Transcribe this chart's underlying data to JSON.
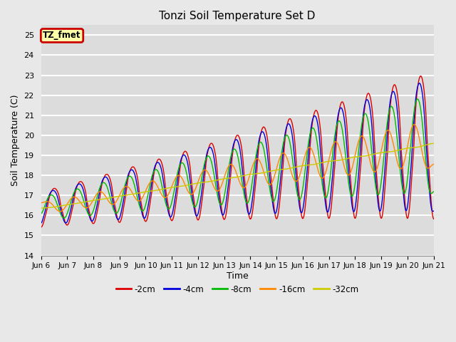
{
  "title": "Tonzi Soil Temperature Set D",
  "xlabel": "Time",
  "ylabel": "Soil Temperature (C)",
  "ylim": [
    14.0,
    25.5
  ],
  "yticks": [
    14.0,
    15.0,
    16.0,
    17.0,
    18.0,
    19.0,
    20.0,
    21.0,
    22.0,
    23.0,
    24.0,
    25.0
  ],
  "fig_bg_color": "#e8e8e8",
  "plot_bg_color": "#dcdcdc",
  "label_box_text": "TZ_fmet",
  "label_box_bg": "#ffffaa",
  "label_box_edge": "#cc0000",
  "lines": [
    {
      "label": "-2cm",
      "color": "#dd0000",
      "amp_scale": 1.0,
      "phase_delay": 0.0,
      "smooth": 1
    },
    {
      "label": "-4cm",
      "color": "#0000dd",
      "amp_scale": 0.92,
      "phase_delay": 0.05,
      "smooth": 2
    },
    {
      "label": "-8cm",
      "color": "#00bb00",
      "amp_scale": 0.75,
      "phase_delay": 0.12,
      "smooth": 4
    },
    {
      "label": "-16cm",
      "color": "#ff8800",
      "amp_scale": 0.52,
      "phase_delay": 0.25,
      "smooth": 8
    },
    {
      "label": "-32cm",
      "color": "#cccc00",
      "amp_scale": 0.18,
      "phase_delay": 0.55,
      "smooth": 20
    }
  ],
  "xtick_labels": [
    "Jun 6",
    "Jun 7",
    "Jun 8",
    "Jun 9",
    "Jun 10",
    "Jun 11",
    "Jun 12",
    "Jun 13",
    "Jun 14",
    "Jun 15",
    "Jun 16",
    "Jun 17",
    "Jun 18",
    "Jun 19",
    "Jun 20",
    "Jun 21"
  ],
  "days": 15,
  "points_per_day": 48
}
